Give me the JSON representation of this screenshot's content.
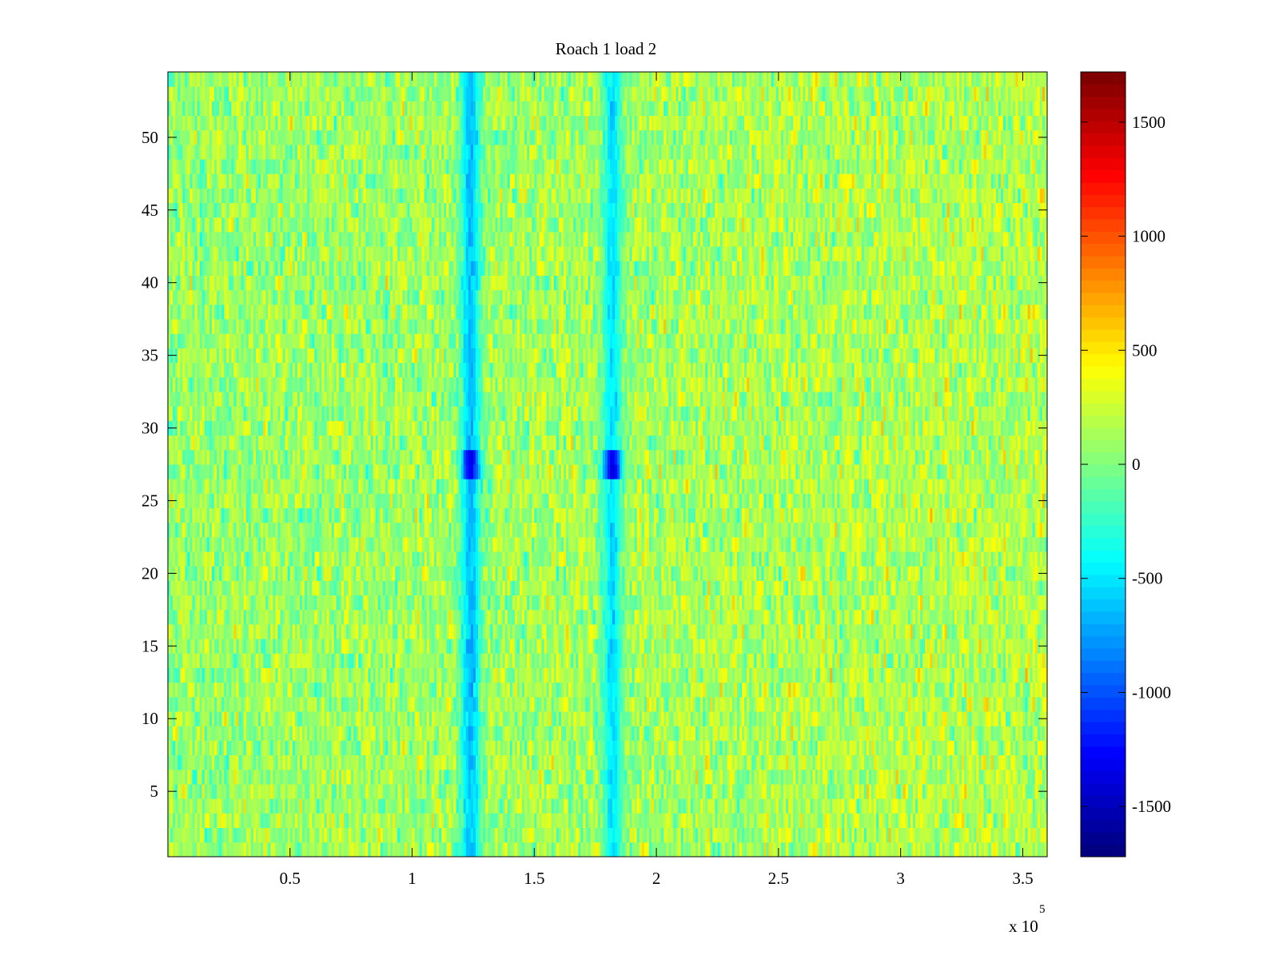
{
  "chart_data": {
    "type": "heatmap",
    "title": "Roach 1 load 2",
    "xlabel": "",
    "ylabel": "",
    "x_multiplier_label": {
      "base": "x 10",
      "exponent": "5"
    },
    "xlim": [
      1,
      360000
    ],
    "ylim": [
      0.5,
      54.5
    ],
    "x_ticks": [
      {
        "value": 0.5,
        "label": "0.5"
      },
      {
        "value": 1,
        "label": "1"
      },
      {
        "value": 1.5,
        "label": "1.5"
      },
      {
        "value": 2,
        "label": "2"
      },
      {
        "value": 2.5,
        "label": "2.5"
      },
      {
        "value": 3,
        "label": "3"
      },
      {
        "value": 3.5,
        "label": "3.5"
      }
    ],
    "y_ticks": [
      {
        "value": 5,
        "label": "5"
      },
      {
        "value": 10,
        "label": "10"
      },
      {
        "value": 15,
        "label": "15"
      },
      {
        "value": 20,
        "label": "20"
      },
      {
        "value": 25,
        "label": "25"
      },
      {
        "value": 30,
        "label": "30"
      },
      {
        "value": 35,
        "label": "35"
      },
      {
        "value": 40,
        "label": "40"
      },
      {
        "value": 45,
        "label": "45"
      },
      {
        "value": 50,
        "label": "50"
      }
    ],
    "rows": 54,
    "color_limits": [
      -1720,
      1720
    ],
    "colormap": "jet",
    "colorbar": {
      "ticks": [
        {
          "value": 1500,
          "label": "1500"
        },
        {
          "value": 1000,
          "label": "1000"
        },
        {
          "value": 500,
          "label": "500"
        },
        {
          "value": 0,
          "label": "0"
        },
        {
          "value": -500,
          "label": "-500"
        },
        {
          "value": -1000,
          "label": "-1000"
        },
        {
          "value": -1500,
          "label": "-1500"
        }
      ]
    },
    "background_level_left": 80,
    "background_level_right": 180,
    "noise_amplitude": 320,
    "dips": [
      {
        "x_center": 124000,
        "half_width": 4200,
        "level": -650
      },
      {
        "x_center": 182000,
        "half_width": 4200,
        "level": -520
      }
    ],
    "deep_dip_rows": [
      27,
      28
    ],
    "deep_dip_level": -1350
  }
}
